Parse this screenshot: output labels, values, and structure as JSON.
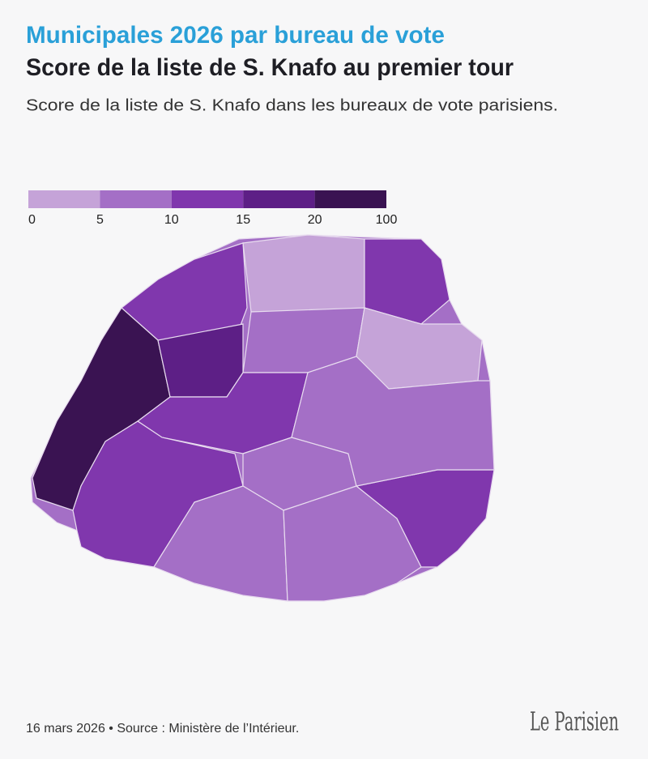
{
  "header": {
    "title": "Municipales 2026 par bureau de vote",
    "subtitle": "Score de la liste de S. Knafo au premier tour",
    "description": "Score de la liste de S. Knafo dans les bureaux de vote parisiens."
  },
  "legend": {
    "breaks": [
      0,
      5,
      10,
      15,
      20,
      100
    ],
    "colors": [
      "#c5a3d8",
      "#a46fc6",
      "#8037ad",
      "#5d1f86",
      "#3a1352"
    ]
  },
  "footer": {
    "source": "16 mars 2026 • Source : Ministère de l’Intérieur.",
    "logo": "Le Parisien"
  }
}
